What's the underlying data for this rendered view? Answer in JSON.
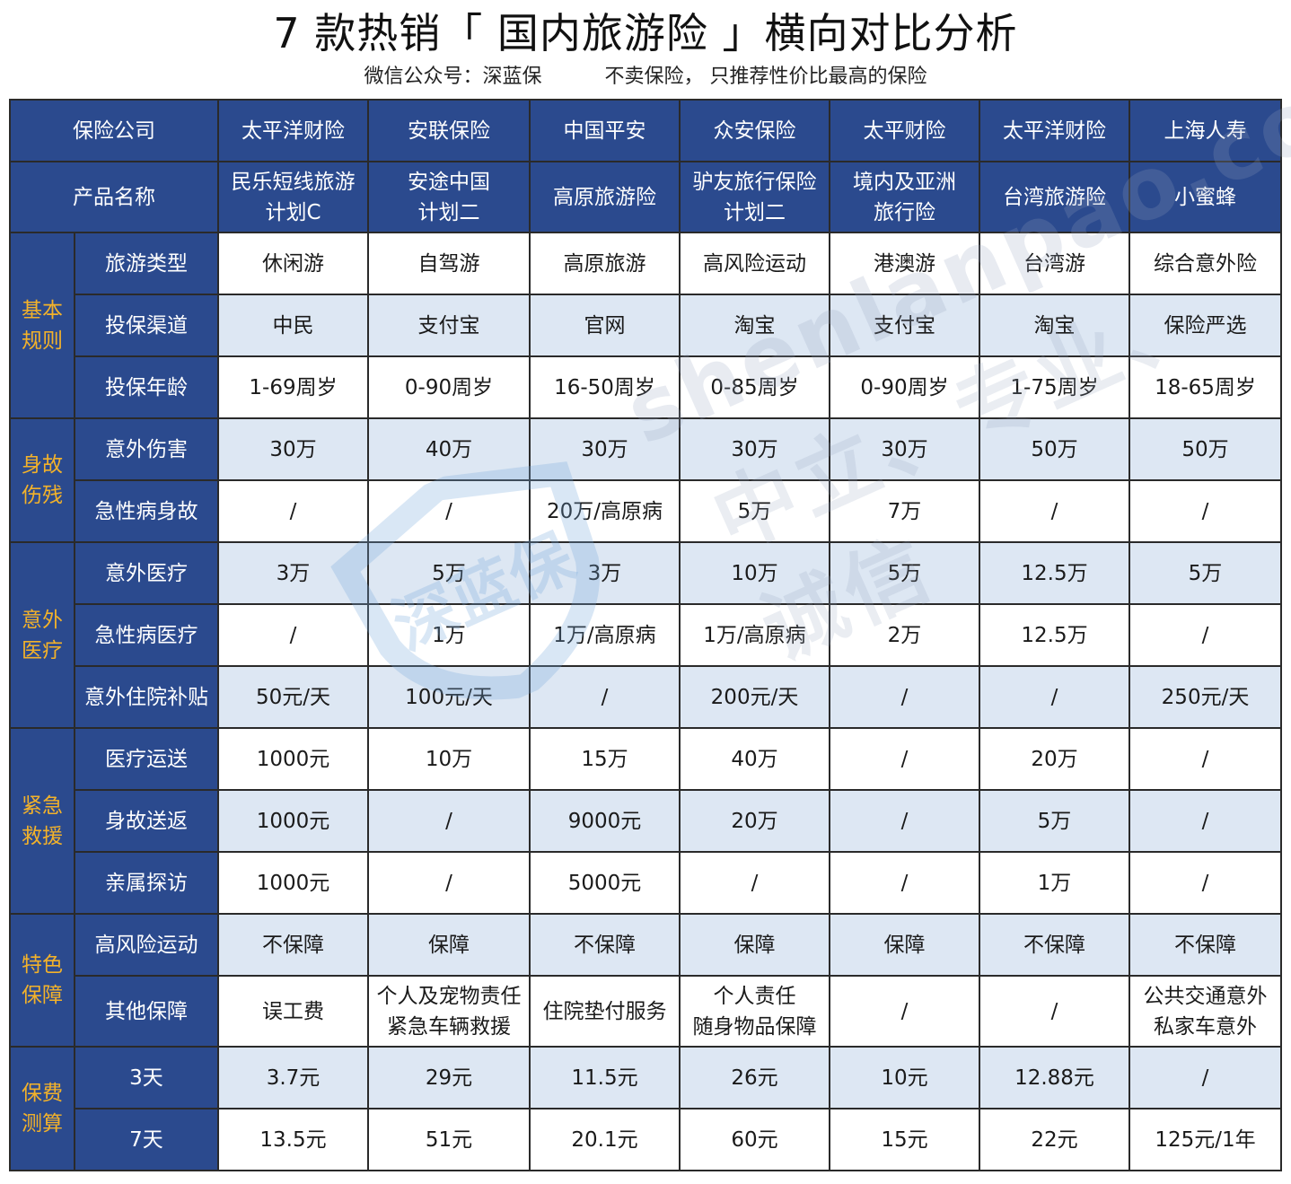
{
  "title": "7 款热销「 国内旅游险 」横向对比分析",
  "subtitle": "微信公众号：深蓝保          不卖保险， 只推荐性价比最高的保险",
  "watermark": {
    "url": "shenlanpao.com",
    "slogan": "中立、专业、诚信",
    "logo": "深蓝保"
  },
  "header": {
    "company_label": "保险公司",
    "companies": [
      "太平洋财险",
      "安联保险",
      "中国平安",
      "众安保险",
      "太平财险",
      "太平洋财险",
      "上海人寿"
    ],
    "product_label": "产品名称",
    "products": [
      [
        "民乐短线旅游",
        "计划C"
      ],
      [
        "安途中国",
        "计划二"
      ],
      [
        "高原旅游险"
      ],
      [
        "驴友旅行保险",
        "计划二"
      ],
      [
        "境内及亚洲",
        "旅行险"
      ],
      [
        "台湾旅游险"
      ],
      [
        "小蜜蜂"
      ]
    ]
  },
  "sections": [
    {
      "category": [
        "基本",
        "规则"
      ],
      "rows": [
        {
          "label": "旅游类型",
          "values": [
            "休闲游",
            "自驾游",
            "高原旅游",
            "高风险运动",
            "港澳游",
            "台湾游",
            "综合意外险"
          ]
        },
        {
          "label": "投保渠道",
          "values": [
            "中民",
            "支付宝",
            "官网",
            "淘宝",
            "支付宝",
            "淘宝",
            "保险严选"
          ]
        },
        {
          "label": "投保年龄",
          "values": [
            "1-69周岁",
            "0-90周岁",
            "16-50周岁",
            "0-85周岁",
            "0-90周岁",
            "1-75周岁",
            "18-65周岁"
          ]
        }
      ]
    },
    {
      "category": [
        "身故",
        "伤残"
      ],
      "rows": [
        {
          "label": "意外伤害",
          "values": [
            "30万",
            "40万",
            "30万",
            "30万",
            "30万",
            "50万",
            "50万"
          ]
        },
        {
          "label": "急性病身故",
          "values": [
            "/",
            "/",
            "20万/高原病",
            "5万",
            "7万",
            "/",
            "/"
          ]
        }
      ]
    },
    {
      "category": [
        "意外",
        "医疗"
      ],
      "rows": [
        {
          "label": "意外医疗",
          "values": [
            "3万",
            "5万",
            "3万",
            "10万",
            "5万",
            "12.5万",
            "5万"
          ]
        },
        {
          "label": "急性病医疗",
          "values": [
            "/",
            "1万",
            "1万/高原病",
            "1万/高原病",
            "2万",
            "12.5万",
            "/"
          ]
        },
        {
          "label": "意外住院补贴",
          "values": [
            "50元/天",
            "100元/天",
            "/",
            "200元/天",
            "/",
            "/",
            "250元/天"
          ]
        }
      ]
    },
    {
      "category": [
        "紧急",
        "救援"
      ],
      "rows": [
        {
          "label": "医疗运送",
          "values": [
            "1000元",
            "10万",
            "15万",
            "40万",
            "/",
            "20万",
            "/"
          ]
        },
        {
          "label": "身故送返",
          "values": [
            "1000元",
            "/",
            "9000元",
            "20万",
            "/",
            "5万",
            "/"
          ]
        },
        {
          "label": "亲属探访",
          "values": [
            "1000元",
            "/",
            "5000元",
            "/",
            "/",
            "1万",
            "/"
          ]
        }
      ]
    },
    {
      "category": [
        "特色",
        "保障"
      ],
      "rows": [
        {
          "label": "高风险运动",
          "values": [
            "不保障",
            "保障",
            "不保障",
            "保障",
            "保障",
            "不保障",
            "不保障"
          ]
        },
        {
          "label": "其他保障",
          "values": [
            [
              "误工费"
            ],
            [
              "个人及宠物责任",
              "紧急车辆救援"
            ],
            [
              "住院垫付服务"
            ],
            [
              "个人责任",
              "随身物品保障"
            ],
            [
              "/"
            ],
            [
              "/"
            ],
            [
              "公共交通意外",
              "私家车意外"
            ]
          ]
        }
      ]
    },
    {
      "category": [
        "保费",
        "测算"
      ],
      "rows": [
        {
          "label": "3天",
          "values": [
            "3.7元",
            "29元",
            "11.5元",
            "26元",
            "10元",
            "12.88元",
            "/"
          ]
        },
        {
          "label": "7天",
          "values": [
            "13.5元",
            "51元",
            "20.1元",
            "60元",
            "15元",
            "22元",
            "125元/1年"
          ]
        }
      ]
    }
  ],
  "colors": {
    "header_bg": "#2b4a8e",
    "header_text": "#ffffff",
    "category_text": "#f3b22a",
    "band": "#dde7f3"
  }
}
